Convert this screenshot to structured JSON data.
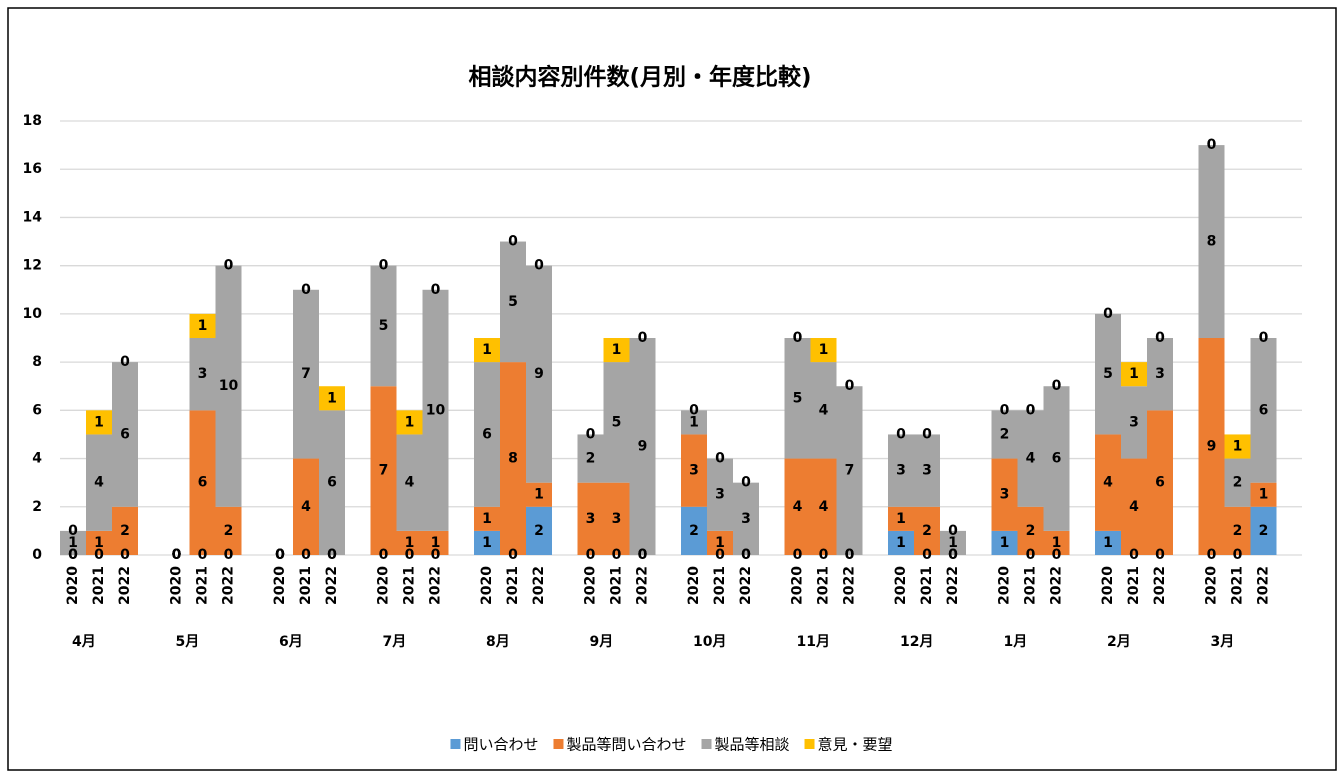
{
  "chart_data": {
    "type": "stacked-bar",
    "title": "相談内容別件数(月別・年度比較)",
    "groups": [
      "4月",
      "5月",
      "6月",
      "7月",
      "8月",
      "9月",
      "10月",
      "11月",
      "12月",
      "1月",
      "2月",
      "3月"
    ],
    "categories": [
      "2020",
      "2021",
      "2022",
      "2020",
      "2021",
      "2022",
      "2020",
      "2021",
      "2022",
      "2020",
      "2021",
      "2022",
      "2020",
      "2021",
      "2022",
      "2020",
      "2021",
      "2022",
      "2020",
      "2021",
      "2022",
      "2020",
      "2021",
      "2022",
      "2020",
      "2021",
      "2022",
      "2020",
      "2021",
      "2022",
      "2020",
      "2021",
      "2022",
      "2020",
      "2021",
      "2022"
    ],
    "series": [
      {
        "name": "問い合わせ",
        "color": "#5b9bd5",
        "values": [
          0,
          0,
          0,
          0,
          0,
          0,
          0,
          0,
          0,
          0,
          0,
          0,
          1,
          0,
          2,
          0,
          0,
          0,
          2,
          0,
          0,
          0,
          0,
          0,
          1,
          0,
          0,
          1,
          0,
          0,
          1,
          0,
          0,
          0,
          0,
          2
        ]
      },
      {
        "name": "製品等問い合わせ",
        "color": "#ed7d31",
        "values": [
          0,
          1,
          2,
          0,
          6,
          2,
          0,
          4,
          0,
          7,
          1,
          1,
          1,
          8,
          1,
          3,
          3,
          0,
          3,
          1,
          0,
          4,
          4,
          0,
          1,
          2,
          0,
          3,
          2,
          1,
          4,
          4,
          6,
          9,
          2,
          1
        ]
      },
      {
        "name": "製品等相談",
        "color": "#a5a5a5",
        "values": [
          1,
          4,
          6,
          0,
          3,
          10,
          0,
          7,
          6,
          5,
          4,
          10,
          6,
          5,
          9,
          2,
          5,
          9,
          1,
          3,
          3,
          5,
          4,
          7,
          3,
          3,
          1,
          2,
          4,
          6,
          5,
          3,
          3,
          8,
          2,
          6
        ]
      },
      {
        "name": "意見・要望",
        "color": "#ffc000",
        "values": [
          0,
          1,
          0,
          0,
          1,
          0,
          0,
          0,
          1,
          0,
          1,
          0,
          1,
          0,
          0,
          0,
          1,
          0,
          0,
          0,
          0,
          0,
          1,
          0,
          0,
          0,
          0,
          0,
          0,
          0,
          0,
          1,
          0,
          0,
          1,
          0
        ]
      }
    ],
    "ylim": [
      0,
      18
    ],
    "yticks": [
      0,
      2,
      4,
      6,
      8,
      10,
      12,
      14,
      16,
      18
    ],
    "grid": true
  }
}
